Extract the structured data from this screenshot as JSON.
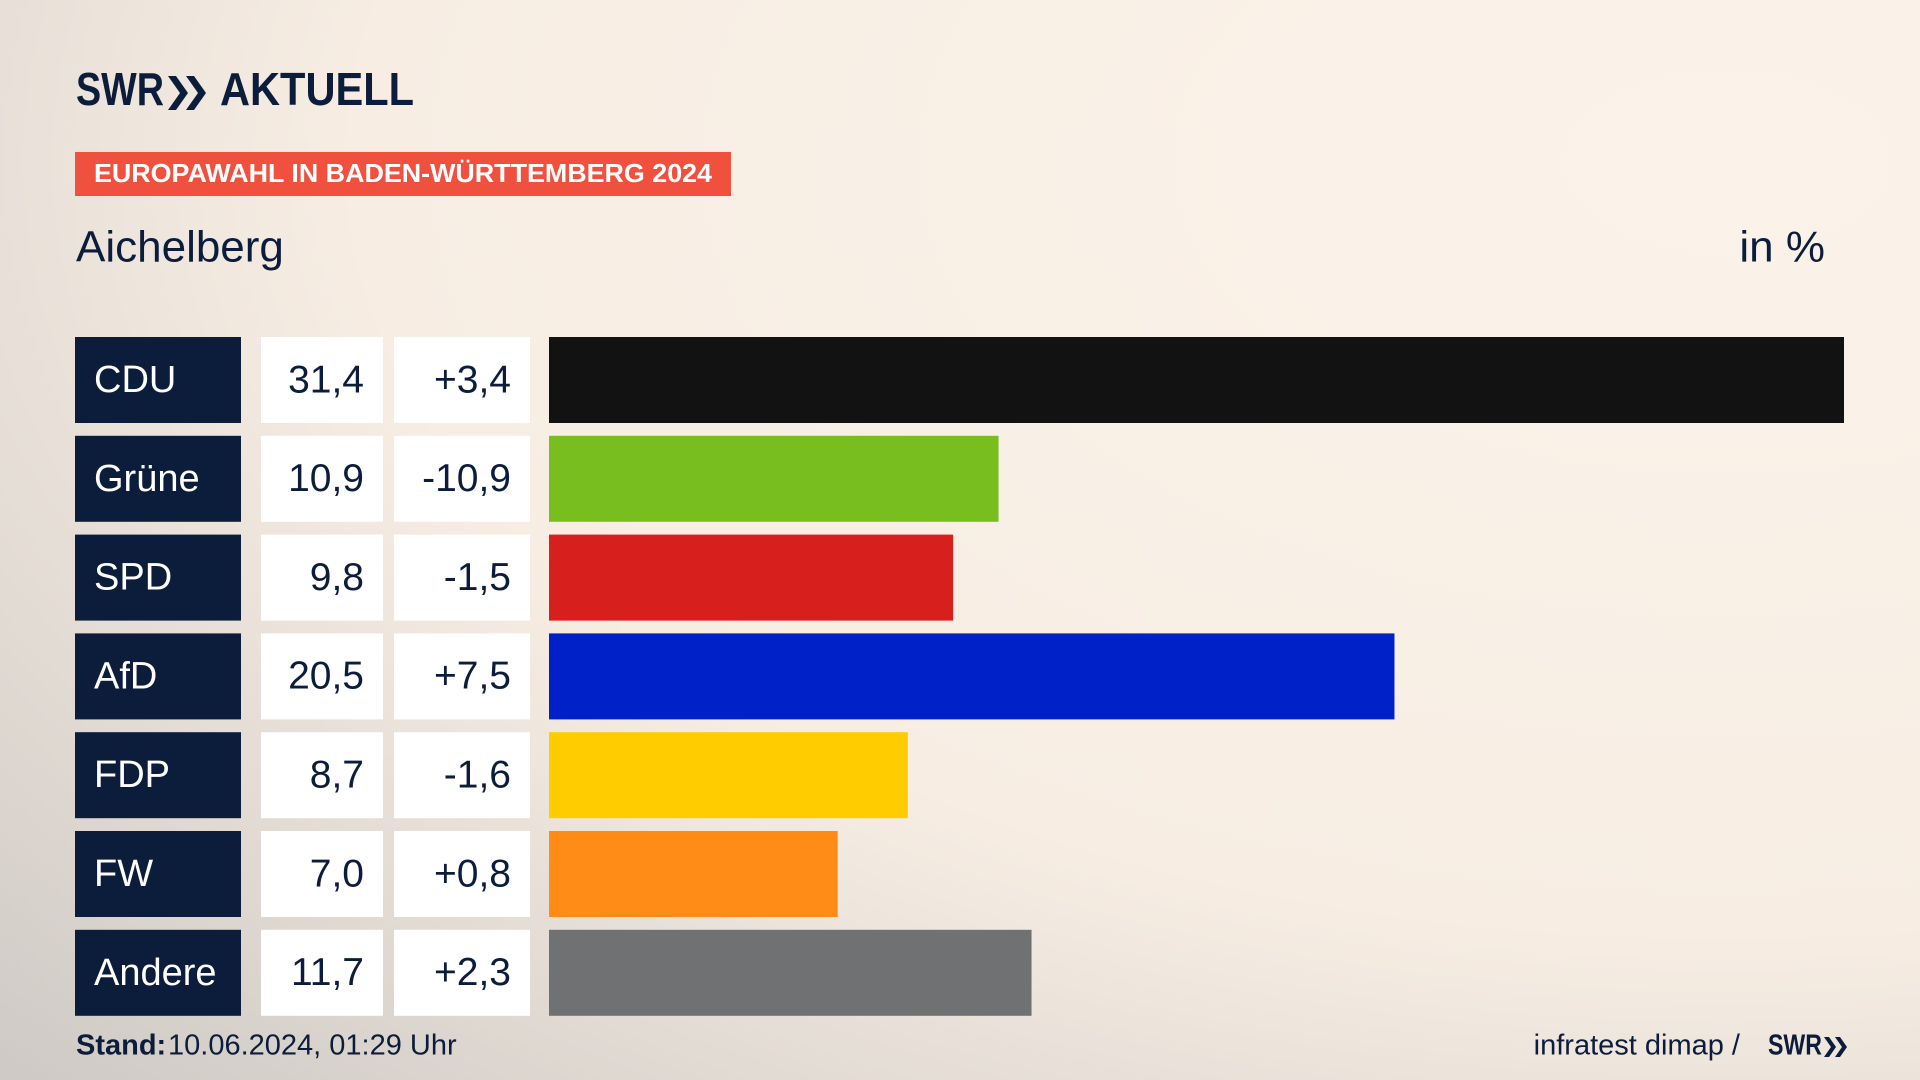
{
  "brand": {
    "name": "SWR",
    "product": "AKTUELL"
  },
  "badge": "EUROPAWAHL IN BADEN-WÜRTTEMBERG 2024",
  "chart_data": {
    "type": "bar",
    "title": "Aichelberg",
    "unit": "in %",
    "categories": [
      "CDU",
      "Grüne",
      "SPD",
      "AfD",
      "FDP",
      "FW",
      "Andere"
    ],
    "values": [
      31.4,
      10.9,
      9.8,
      20.5,
      8.7,
      7.0,
      11.7
    ],
    "value_labels": [
      "31,4",
      "10,9",
      "9,8",
      "20,5",
      "8,7",
      "7,0",
      "11,7"
    ],
    "changes": [
      "+3,4",
      "-10,9",
      "-1,5",
      "+7,5",
      "-1,6",
      "+0,8",
      "+2,3"
    ],
    "colors": [
      "#121212",
      "#78be1e",
      "#d71f1d",
      "#0021c8",
      "#ffcc00",
      "#ff8c17",
      "#707173"
    ]
  },
  "footer": {
    "label": "Stand:",
    "date": "10.06.2024, 01:29 Uhr",
    "source": "infratest dimap /",
    "source_brand": "SWR"
  }
}
